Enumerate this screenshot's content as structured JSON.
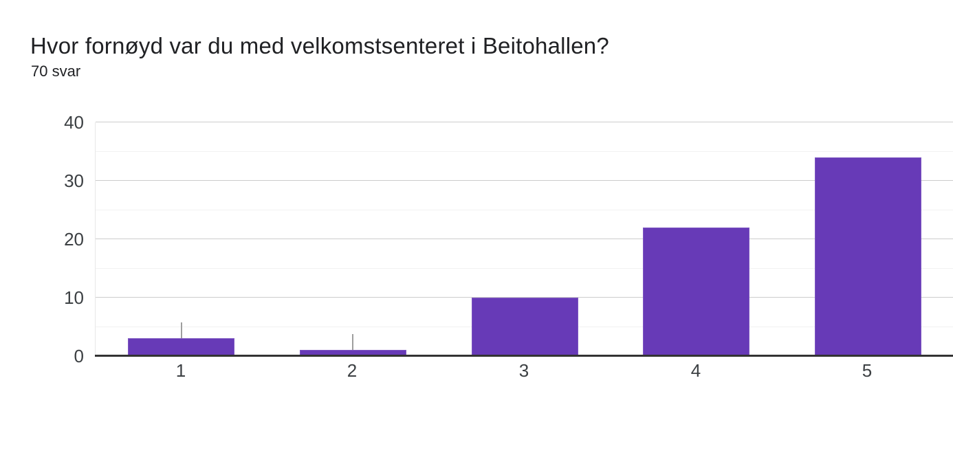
{
  "header": {
    "title": "Hvor fornøyd var du med velkomstsenteret i Beitohallen?",
    "subtitle": "70 svar"
  },
  "chart_data": {
    "type": "bar",
    "title": "Hvor fornøyd var du med velkomstsenteret i Beitohallen?",
    "subtitle": "70 svar",
    "categories": [
      "1",
      "2",
      "3",
      "4",
      "5"
    ],
    "values": [
      3,
      1,
      10,
      22,
      34
    ],
    "total_responses": 70,
    "xlabel": "",
    "ylabel": "",
    "ylim": [
      0,
      40
    ],
    "yticks": [
      0,
      10,
      20,
      30,
      40
    ],
    "minor_yticks": [
      5,
      15,
      25,
      35
    ],
    "grid": true,
    "legend_position": "none",
    "annotation_stem_indices": [
      0,
      1
    ],
    "colors": {
      "bar_fill": "#673ab7",
      "bar_stroke": "#7e57c2",
      "baseline": "#333333",
      "grid_major": "#cccccc",
      "grid_minor": "#f1f1f1",
      "stem": "#9e9e9e",
      "title_text": "#202124",
      "axis_text": "#3c4043",
      "background": "#ffffff"
    }
  }
}
